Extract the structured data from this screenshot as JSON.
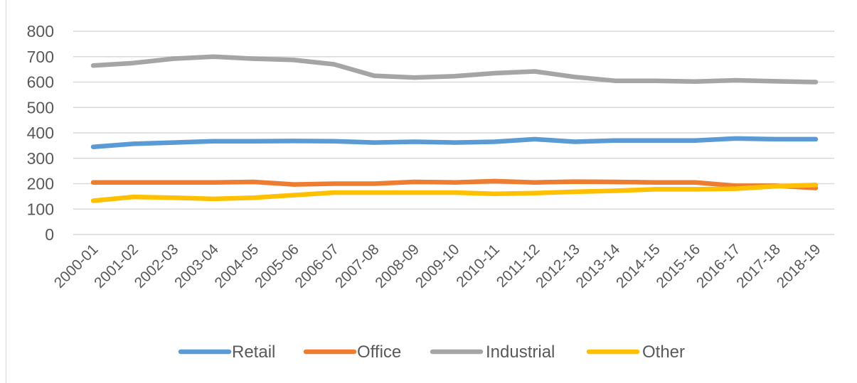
{
  "chart_data": {
    "type": "line",
    "categories": [
      "2000-01",
      "2001-02",
      "2002-03",
      "2003-04",
      "2004-05",
      "2005-06",
      "2006-07",
      "2007-08",
      "2008-09",
      "2009-10",
      "2010-11",
      "2011-12",
      "2012-13",
      "2013-14",
      "2014-15",
      "2015-16",
      "2016-17",
      "2017-18",
      "2018-19"
    ],
    "y_ticks": [
      "0",
      "100",
      "200",
      "300",
      "400",
      "500",
      "600",
      "700",
      "800"
    ],
    "ylim": [
      0,
      800
    ],
    "grid": true,
    "legend_position": "bottom",
    "series": [
      {
        "name": "Retail",
        "color": "#5b9bd5",
        "values": [
          345,
          357,
          362,
          367,
          367,
          368,
          367,
          362,
          365,
          362,
          365,
          375,
          365,
          370,
          370,
          370,
          378,
          375,
          375
        ]
      },
      {
        "name": "Office",
        "color": "#ed7d31",
        "values": [
          205,
          205,
          205,
          205,
          207,
          197,
          200,
          200,
          207,
          205,
          210,
          205,
          208,
          207,
          205,
          205,
          192,
          192,
          183
        ]
      },
      {
        "name": "Industrial",
        "color": "#a5a5a5",
        "values": [
          665,
          675,
          692,
          700,
          692,
          687,
          670,
          625,
          618,
          623,
          635,
          642,
          620,
          605,
          605,
          602,
          607,
          603,
          600
        ]
      },
      {
        "name": "Other",
        "color": "#ffc000",
        "values": [
          133,
          148,
          145,
          140,
          145,
          155,
          165,
          165,
          165,
          165,
          160,
          163,
          168,
          172,
          178,
          178,
          180,
          190,
          195
        ]
      }
    ]
  }
}
